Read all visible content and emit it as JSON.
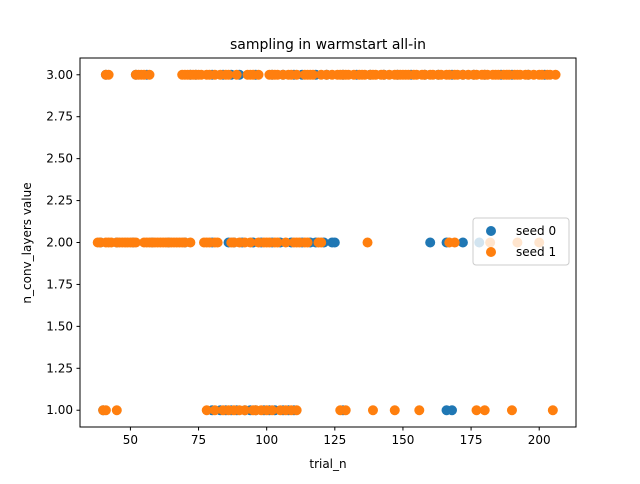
{
  "chart_data": {
    "type": "scatter",
    "title": "sampling in warmstart all-in",
    "xlabel": "trial_n",
    "ylabel": "n_conv_layers value",
    "xlim": [
      31.5,
      213.5
    ],
    "ylim": [
      0.9,
      3.1
    ],
    "xticks": [
      50,
      75,
      100,
      125,
      150,
      175,
      200
    ],
    "xtick_labels": [
      "50",
      "75",
      "100",
      "125",
      "150",
      "175",
      "200"
    ],
    "yticks": [
      1.0,
      1.25,
      1.5,
      1.75,
      2.0,
      2.25,
      2.5,
      2.75,
      3.0
    ],
    "ytick_labels": [
      "1.00",
      "1.25",
      "1.50",
      "1.75",
      "2.00",
      "2.25",
      "2.50",
      "2.75",
      "3.00"
    ],
    "grid": false,
    "legend_position": "center-right",
    "series": [
      {
        "name": "seed 0",
        "color": "#1f77b4",
        "points": [
          [
            41,
            3
          ],
          [
            52,
            3
          ],
          [
            56,
            3
          ],
          [
            72,
            3
          ],
          [
            74,
            3
          ],
          [
            80,
            3
          ],
          [
            84,
            3
          ],
          [
            87,
            3
          ],
          [
            90,
            3
          ],
          [
            96,
            3
          ],
          [
            102,
            3
          ],
          [
            106,
            3
          ],
          [
            110,
            3
          ],
          [
            113,
            3
          ],
          [
            118,
            3
          ],
          [
            122,
            3
          ],
          [
            128,
            3
          ],
          [
            133,
            3
          ],
          [
            138,
            3
          ],
          [
            143,
            3
          ],
          [
            148,
            3
          ],
          [
            153,
            3
          ],
          [
            158,
            3
          ],
          [
            163,
            3
          ],
          [
            168,
            3
          ],
          [
            172,
            3
          ],
          [
            176,
            3
          ],
          [
            180,
            3
          ],
          [
            186,
            3
          ],
          [
            190,
            3
          ],
          [
            196,
            3
          ],
          [
            202,
            3
          ],
          [
            39,
            2
          ],
          [
            45,
            2
          ],
          [
            51,
            2
          ],
          [
            58,
            2
          ],
          [
            64,
            2
          ],
          [
            70,
            2
          ],
          [
            80,
            2
          ],
          [
            86,
            2
          ],
          [
            88,
            2
          ],
          [
            91,
            2
          ],
          [
            95,
            2
          ],
          [
            98,
            2
          ],
          [
            102,
            2
          ],
          [
            105,
            2
          ],
          [
            109,
            2
          ],
          [
            113,
            2
          ],
          [
            116,
            2
          ],
          [
            118,
            2
          ],
          [
            121,
            2
          ],
          [
            124,
            2
          ],
          [
            125,
            2
          ],
          [
            160,
            2
          ],
          [
            166,
            2
          ],
          [
            172,
            2
          ],
          [
            178,
            2
          ],
          [
            40,
            1
          ],
          [
            80,
            1
          ],
          [
            83,
            1
          ],
          [
            85,
            1
          ],
          [
            87,
            1
          ],
          [
            89,
            1
          ],
          [
            92,
            1
          ],
          [
            94,
            1
          ],
          [
            96,
            1
          ],
          [
            99,
            1
          ],
          [
            101,
            1
          ],
          [
            103,
            1
          ],
          [
            106,
            1
          ],
          [
            108,
            1
          ],
          [
            110,
            1
          ],
          [
            128,
            1
          ],
          [
            166,
            1
          ],
          [
            168,
            1
          ]
        ]
      },
      {
        "name": "seed 1",
        "color": "#ff7f0e",
        "points": [
          [
            41,
            3
          ],
          [
            42,
            3
          ],
          [
            52,
            3
          ],
          [
            53,
            3
          ],
          [
            54,
            3
          ],
          [
            55,
            3
          ],
          [
            57,
            3
          ],
          [
            69,
            3
          ],
          [
            70,
            3
          ],
          [
            71,
            3
          ],
          [
            72,
            3
          ],
          [
            73,
            3
          ],
          [
            74,
            3
          ],
          [
            75,
            3
          ],
          [
            76,
            3
          ],
          [
            78,
            3
          ],
          [
            79,
            3
          ],
          [
            81,
            3
          ],
          [
            83,
            3
          ],
          [
            85,
            3
          ],
          [
            86,
            3
          ],
          [
            89,
            3
          ],
          [
            93,
            3
          ],
          [
            94,
            3
          ],
          [
            95,
            3
          ],
          [
            97,
            3
          ],
          [
            101,
            3
          ],
          [
            102,
            3
          ],
          [
            103,
            3
          ],
          [
            104,
            3
          ],
          [
            106,
            3
          ],
          [
            108,
            3
          ],
          [
            109,
            3
          ],
          [
            111,
            3
          ],
          [
            114,
            3
          ],
          [
            115,
            3
          ],
          [
            116,
            3
          ],
          [
            117,
            3
          ],
          [
            120,
            3
          ],
          [
            122,
            3
          ],
          [
            124,
            3
          ],
          [
            126,
            3
          ],
          [
            127,
            3
          ],
          [
            128,
            3
          ],
          [
            129,
            3
          ],
          [
            130,
            3
          ],
          [
            132,
            3
          ],
          [
            134,
            3
          ],
          [
            135,
            3
          ],
          [
            136,
            3
          ],
          [
            138,
            3
          ],
          [
            139,
            3
          ],
          [
            140,
            3
          ],
          [
            142,
            3
          ],
          [
            143,
            3
          ],
          [
            145,
            3
          ],
          [
            147,
            3
          ],
          [
            148,
            3
          ],
          [
            149,
            3
          ],
          [
            150,
            3
          ],
          [
            151,
            3
          ],
          [
            152,
            3
          ],
          [
            154,
            3
          ],
          [
            155,
            3
          ],
          [
            157,
            3
          ],
          [
            158,
            3
          ],
          [
            160,
            3
          ],
          [
            161,
            3
          ],
          [
            163,
            3
          ],
          [
            164,
            3
          ],
          [
            166,
            3
          ],
          [
            167,
            3
          ],
          [
            169,
            3
          ],
          [
            170,
            3
          ],
          [
            172,
            3
          ],
          [
            174,
            3
          ],
          [
            176,
            3
          ],
          [
            177,
            3
          ],
          [
            179,
            3
          ],
          [
            180,
            3
          ],
          [
            181,
            3
          ],
          [
            183,
            3
          ],
          [
            184,
            3
          ],
          [
            185,
            3
          ],
          [
            187,
            3
          ],
          [
            188,
            3
          ],
          [
            189,
            3
          ],
          [
            191,
            3
          ],
          [
            192,
            3
          ],
          [
            193,
            3
          ],
          [
            195,
            3
          ],
          [
            196,
            3
          ],
          [
            198,
            3
          ],
          [
            200,
            3
          ],
          [
            201,
            3
          ],
          [
            203,
            3
          ],
          [
            204,
            3
          ],
          [
            206,
            3
          ],
          [
            38,
            2
          ],
          [
            39,
            2
          ],
          [
            41,
            2
          ],
          [
            42,
            2
          ],
          [
            43,
            2
          ],
          [
            45,
            2
          ],
          [
            46,
            2
          ],
          [
            47,
            2
          ],
          [
            48,
            2
          ],
          [
            49,
            2
          ],
          [
            50,
            2
          ],
          [
            51,
            2
          ],
          [
            52,
            2
          ],
          [
            55,
            2
          ],
          [
            56,
            2
          ],
          [
            57,
            2
          ],
          [
            58,
            2
          ],
          [
            59,
            2
          ],
          [
            60,
            2
          ],
          [
            61,
            2
          ],
          [
            62,
            2
          ],
          [
            63,
            2
          ],
          [
            64,
            2
          ],
          [
            65,
            2
          ],
          [
            66,
            2
          ],
          [
            67,
            2
          ],
          [
            68,
            2
          ],
          [
            69,
            2
          ],
          [
            70,
            2
          ],
          [
            72,
            2
          ],
          [
            77,
            2
          ],
          [
            78,
            2
          ],
          [
            79,
            2
          ],
          [
            81,
            2
          ],
          [
            82,
            2
          ],
          [
            87,
            2
          ],
          [
            88,
            2
          ],
          [
            90,
            2
          ],
          [
            92,
            2
          ],
          [
            94,
            2
          ],
          [
            97,
            2
          ],
          [
            99,
            2
          ],
          [
            100,
            2
          ],
          [
            101,
            2
          ],
          [
            103,
            2
          ],
          [
            104,
            2
          ],
          [
            107,
            2
          ],
          [
            110,
            2
          ],
          [
            111,
            2
          ],
          [
            112,
            2
          ],
          [
            114,
            2
          ],
          [
            115,
            2
          ],
          [
            119,
            2
          ],
          [
            120,
            2
          ],
          [
            137,
            2
          ],
          [
            167,
            2
          ],
          [
            169,
            2
          ],
          [
            182,
            2
          ],
          [
            192,
            2
          ],
          [
            200,
            2
          ],
          [
            40,
            1
          ],
          [
            41,
            1
          ],
          [
            45,
            1
          ],
          [
            78,
            1
          ],
          [
            81,
            1
          ],
          [
            84,
            1
          ],
          [
            86,
            1
          ],
          [
            88,
            1
          ],
          [
            90,
            1
          ],
          [
            92,
            1
          ],
          [
            95,
            1
          ],
          [
            96,
            1
          ],
          [
            98,
            1
          ],
          [
            100,
            1
          ],
          [
            102,
            1
          ],
          [
            105,
            1
          ],
          [
            107,
            1
          ],
          [
            109,
            1
          ],
          [
            111,
            1
          ],
          [
            127,
            1
          ],
          [
            129,
            1
          ],
          [
            139,
            1
          ],
          [
            147,
            1
          ],
          [
            156,
            1
          ],
          [
            177,
            1
          ],
          [
            180,
            1
          ],
          [
            190,
            1
          ],
          [
            205,
            1
          ]
        ]
      }
    ]
  }
}
